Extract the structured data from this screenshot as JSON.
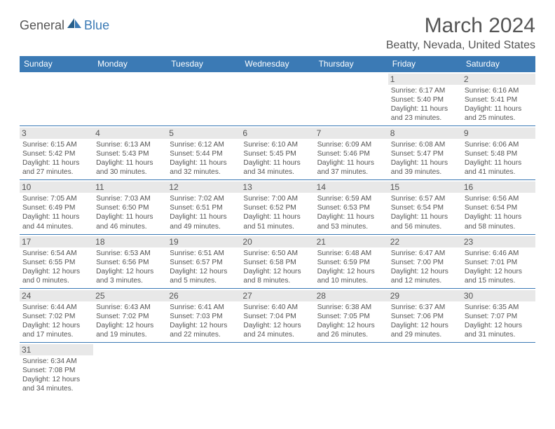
{
  "logo": {
    "part1": "General",
    "part2": "Blue"
  },
  "title": "March 2024",
  "location": "Beatty, Nevada, United States",
  "colors": {
    "brand_blue": "#3b7ab5",
    "text": "#555555",
    "daynum_bg": "#e8e8e8",
    "border": "#3b7ab5",
    "bg": "#ffffff"
  },
  "weekdays": [
    "Sunday",
    "Monday",
    "Tuesday",
    "Wednesday",
    "Thursday",
    "Friday",
    "Saturday"
  ],
  "weeks": [
    [
      null,
      null,
      null,
      null,
      null,
      {
        "n": "1",
        "sr": "Sunrise: 6:17 AM",
        "ss": "Sunset: 5:40 PM",
        "d1": "Daylight: 11 hours",
        "d2": "and 23 minutes."
      },
      {
        "n": "2",
        "sr": "Sunrise: 6:16 AM",
        "ss": "Sunset: 5:41 PM",
        "d1": "Daylight: 11 hours",
        "d2": "and 25 minutes."
      }
    ],
    [
      {
        "n": "3",
        "sr": "Sunrise: 6:15 AM",
        "ss": "Sunset: 5:42 PM",
        "d1": "Daylight: 11 hours",
        "d2": "and 27 minutes."
      },
      {
        "n": "4",
        "sr": "Sunrise: 6:13 AM",
        "ss": "Sunset: 5:43 PM",
        "d1": "Daylight: 11 hours",
        "d2": "and 30 minutes."
      },
      {
        "n": "5",
        "sr": "Sunrise: 6:12 AM",
        "ss": "Sunset: 5:44 PM",
        "d1": "Daylight: 11 hours",
        "d2": "and 32 minutes."
      },
      {
        "n": "6",
        "sr": "Sunrise: 6:10 AM",
        "ss": "Sunset: 5:45 PM",
        "d1": "Daylight: 11 hours",
        "d2": "and 34 minutes."
      },
      {
        "n": "7",
        "sr": "Sunrise: 6:09 AM",
        "ss": "Sunset: 5:46 PM",
        "d1": "Daylight: 11 hours",
        "d2": "and 37 minutes."
      },
      {
        "n": "8",
        "sr": "Sunrise: 6:08 AM",
        "ss": "Sunset: 5:47 PM",
        "d1": "Daylight: 11 hours",
        "d2": "and 39 minutes."
      },
      {
        "n": "9",
        "sr": "Sunrise: 6:06 AM",
        "ss": "Sunset: 5:48 PM",
        "d1": "Daylight: 11 hours",
        "d2": "and 41 minutes."
      }
    ],
    [
      {
        "n": "10",
        "sr": "Sunrise: 7:05 AM",
        "ss": "Sunset: 6:49 PM",
        "d1": "Daylight: 11 hours",
        "d2": "and 44 minutes."
      },
      {
        "n": "11",
        "sr": "Sunrise: 7:03 AM",
        "ss": "Sunset: 6:50 PM",
        "d1": "Daylight: 11 hours",
        "d2": "and 46 minutes."
      },
      {
        "n": "12",
        "sr": "Sunrise: 7:02 AM",
        "ss": "Sunset: 6:51 PM",
        "d1": "Daylight: 11 hours",
        "d2": "and 49 minutes."
      },
      {
        "n": "13",
        "sr": "Sunrise: 7:00 AM",
        "ss": "Sunset: 6:52 PM",
        "d1": "Daylight: 11 hours",
        "d2": "and 51 minutes."
      },
      {
        "n": "14",
        "sr": "Sunrise: 6:59 AM",
        "ss": "Sunset: 6:53 PM",
        "d1": "Daylight: 11 hours",
        "d2": "and 53 minutes."
      },
      {
        "n": "15",
        "sr": "Sunrise: 6:57 AM",
        "ss": "Sunset: 6:54 PM",
        "d1": "Daylight: 11 hours",
        "d2": "and 56 minutes."
      },
      {
        "n": "16",
        "sr": "Sunrise: 6:56 AM",
        "ss": "Sunset: 6:54 PM",
        "d1": "Daylight: 11 hours",
        "d2": "and 58 minutes."
      }
    ],
    [
      {
        "n": "17",
        "sr": "Sunrise: 6:54 AM",
        "ss": "Sunset: 6:55 PM",
        "d1": "Daylight: 12 hours",
        "d2": "and 0 minutes."
      },
      {
        "n": "18",
        "sr": "Sunrise: 6:53 AM",
        "ss": "Sunset: 6:56 PM",
        "d1": "Daylight: 12 hours",
        "d2": "and 3 minutes."
      },
      {
        "n": "19",
        "sr": "Sunrise: 6:51 AM",
        "ss": "Sunset: 6:57 PM",
        "d1": "Daylight: 12 hours",
        "d2": "and 5 minutes."
      },
      {
        "n": "20",
        "sr": "Sunrise: 6:50 AM",
        "ss": "Sunset: 6:58 PM",
        "d1": "Daylight: 12 hours",
        "d2": "and 8 minutes."
      },
      {
        "n": "21",
        "sr": "Sunrise: 6:48 AM",
        "ss": "Sunset: 6:59 PM",
        "d1": "Daylight: 12 hours",
        "d2": "and 10 minutes."
      },
      {
        "n": "22",
        "sr": "Sunrise: 6:47 AM",
        "ss": "Sunset: 7:00 PM",
        "d1": "Daylight: 12 hours",
        "d2": "and 12 minutes."
      },
      {
        "n": "23",
        "sr": "Sunrise: 6:46 AM",
        "ss": "Sunset: 7:01 PM",
        "d1": "Daylight: 12 hours",
        "d2": "and 15 minutes."
      }
    ],
    [
      {
        "n": "24",
        "sr": "Sunrise: 6:44 AM",
        "ss": "Sunset: 7:02 PM",
        "d1": "Daylight: 12 hours",
        "d2": "and 17 minutes."
      },
      {
        "n": "25",
        "sr": "Sunrise: 6:43 AM",
        "ss": "Sunset: 7:02 PM",
        "d1": "Daylight: 12 hours",
        "d2": "and 19 minutes."
      },
      {
        "n": "26",
        "sr": "Sunrise: 6:41 AM",
        "ss": "Sunset: 7:03 PM",
        "d1": "Daylight: 12 hours",
        "d2": "and 22 minutes."
      },
      {
        "n": "27",
        "sr": "Sunrise: 6:40 AM",
        "ss": "Sunset: 7:04 PM",
        "d1": "Daylight: 12 hours",
        "d2": "and 24 minutes."
      },
      {
        "n": "28",
        "sr": "Sunrise: 6:38 AM",
        "ss": "Sunset: 7:05 PM",
        "d1": "Daylight: 12 hours",
        "d2": "and 26 minutes."
      },
      {
        "n": "29",
        "sr": "Sunrise: 6:37 AM",
        "ss": "Sunset: 7:06 PM",
        "d1": "Daylight: 12 hours",
        "d2": "and 29 minutes."
      },
      {
        "n": "30",
        "sr": "Sunrise: 6:35 AM",
        "ss": "Sunset: 7:07 PM",
        "d1": "Daylight: 12 hours",
        "d2": "and 31 minutes."
      }
    ],
    [
      {
        "n": "31",
        "sr": "Sunrise: 6:34 AM",
        "ss": "Sunset: 7:08 PM",
        "d1": "Daylight: 12 hours",
        "d2": "and 34 minutes."
      },
      null,
      null,
      null,
      null,
      null,
      null
    ]
  ]
}
